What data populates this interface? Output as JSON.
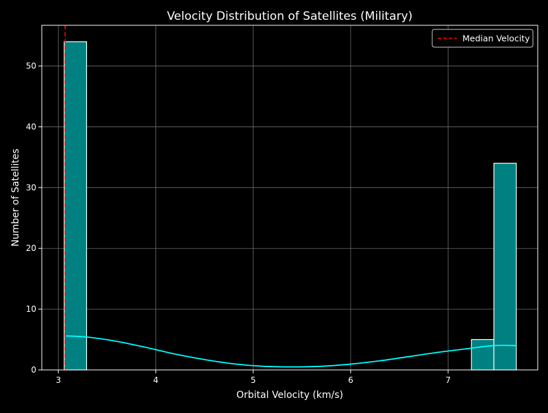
{
  "chart_data": {
    "type": "bar",
    "title": "Velocity Distribution of Satellites (Military)",
    "xlabel": "Orbital Velocity (km/s)",
    "ylabel": "Number of Satellites",
    "xlim": [
      2.83,
      7.92
    ],
    "ylim": [
      0,
      56.7
    ],
    "xticks": [
      3,
      4,
      5,
      6,
      7
    ],
    "yticks": [
      0,
      10,
      20,
      30,
      40,
      50
    ],
    "grid": true,
    "legend_position": "top-right",
    "bins": [
      {
        "x0": 3.06,
        "x1": 3.29,
        "count": 54
      },
      {
        "x0": 7.24,
        "x1": 7.47,
        "count": 5
      },
      {
        "x0": 7.47,
        "x1": 7.7,
        "count": 34
      }
    ],
    "kde": {
      "x": [
        3.06,
        3.3,
        3.6,
        3.9,
        4.2,
        4.5,
        4.8,
        5.1,
        5.4,
        5.7,
        6.0,
        6.3,
        6.6,
        6.9,
        7.2,
        7.47,
        7.7
      ],
      "y": [
        5.6,
        5.4,
        4.7,
        3.7,
        2.6,
        1.7,
        1.0,
        0.6,
        0.5,
        0.6,
        0.95,
        1.5,
        2.2,
        2.9,
        3.5,
        4.0,
        4.0
      ]
    },
    "median": {
      "label": "Median Velocity",
      "value": 3.07
    },
    "colors": {
      "background": "#000000",
      "bar_fill": "#008080",
      "bar_edge": "#ffffff",
      "kde_line": "#00ffff",
      "median_line": "#ff0000",
      "grid": "#6e6e6e",
      "text": "#ffffff"
    }
  }
}
